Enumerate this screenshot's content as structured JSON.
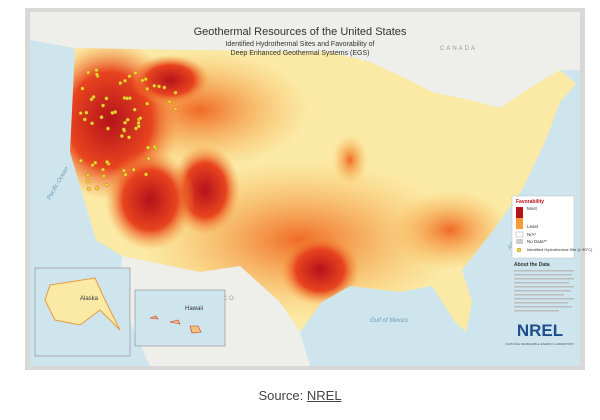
{
  "map": {
    "title": "Geothermal Resources of the United States",
    "subtitle": [
      "Identified Hydrothermal Sites and Favorability of",
      "Deep Enhanced Geothermal Systems (EGS)"
    ],
    "labels": {
      "canada": "CANADA",
      "mexico": "MEXICO",
      "pacific": "Pacific Ocean",
      "atlantic": "Atlantic Ocean",
      "gulf": "Gulf of Mexico",
      "alaska": "Alaska",
      "hawaii": "Hawaii"
    },
    "legend": {
      "title": "Favorability",
      "items": [
        "Most",
        "Least",
        "N/A*",
        "No Data**"
      ],
      "site": "Identified Hydrothermal Site (≥ 90°C)"
    },
    "about": "About the Data",
    "logo": "NREL",
    "logo_sub": "NATIONAL RENEWABLE ENERGY LABORATORY"
  },
  "caption": {
    "prefix": "Source:",
    "link": "NREL"
  }
}
